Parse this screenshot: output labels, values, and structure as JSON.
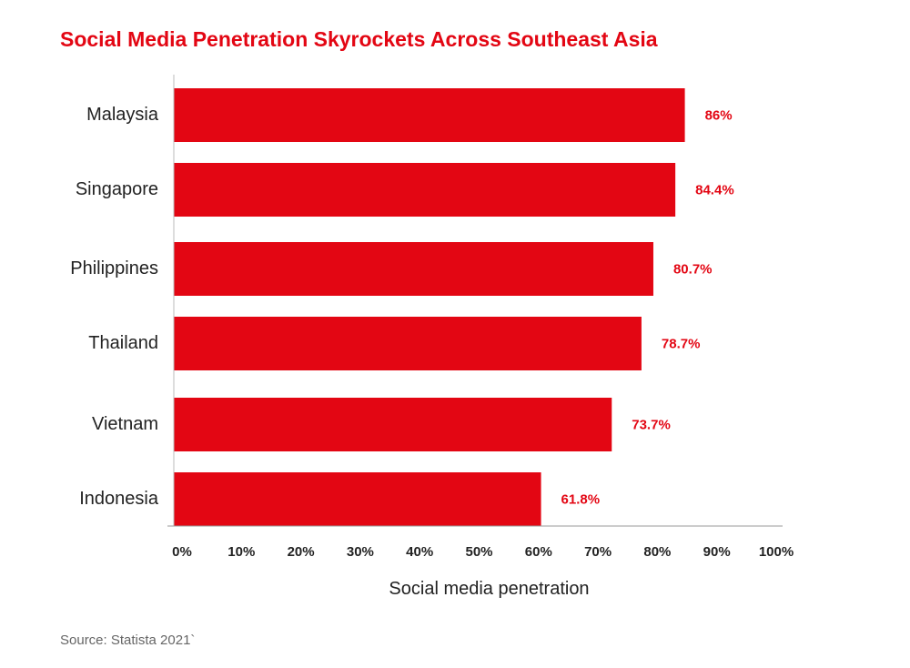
{
  "chart_data": {
    "type": "bar",
    "orientation": "horizontal",
    "title": "Social Media Penetration Skyrockets Across Southeast Asia",
    "categories": [
      "Malaysia",
      "Singapore",
      "Philippines",
      "Thailand",
      "Vietnam",
      "Indonesia"
    ],
    "values": [
      86,
      84.4,
      80.7,
      78.7,
      73.7,
      61.8
    ],
    "value_labels": [
      "86%",
      "84.4%",
      "80.7%",
      "78.7%",
      "73.7%",
      "61.8%"
    ],
    "xlabel": "Social media penetration",
    "ylabel": "",
    "xlim": [
      0,
      100
    ],
    "x_ticks": [
      "0%",
      "10%",
      "20%",
      "30%",
      "40%",
      "50%",
      "60%",
      "70%",
      "80%",
      "90%",
      "100%"
    ],
    "grid": false,
    "legend": "none",
    "bar_color": "#e30613",
    "label_color": "#e30613"
  },
  "source": "Source: Statista 2021`"
}
